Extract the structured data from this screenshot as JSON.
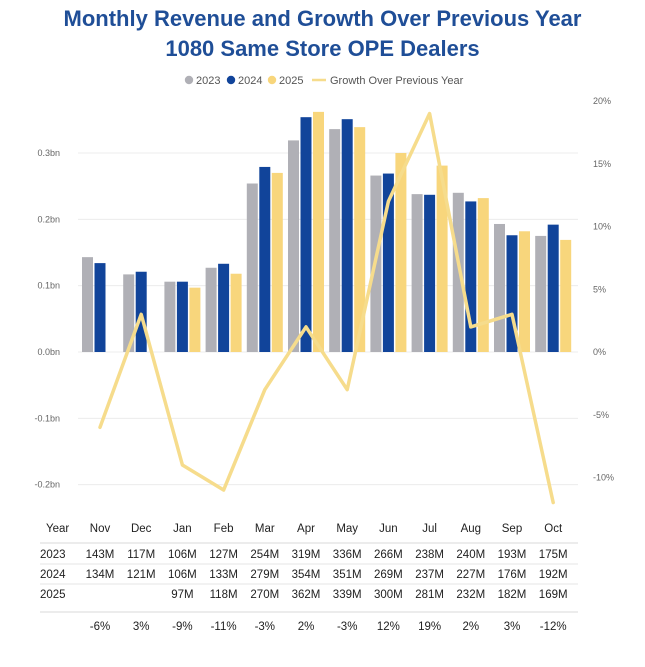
{
  "title_line1": "Monthly Revenue and Growth Over Previous Year",
  "title_line2": "1080 Same Store OPE Dealers",
  "colors": {
    "2023": "#b0b0b6",
    "2024": "#11449a",
    "2025": "#f8d67c",
    "growth": "#f6dc8c",
    "title": "#1f4e97"
  },
  "chart_data": {
    "type": "bar",
    "categories": [
      "Nov",
      "Dec",
      "Jan",
      "Feb",
      "Mar",
      "Apr",
      "May",
      "Jun",
      "Jul",
      "Aug",
      "Sep",
      "Oct"
    ],
    "series": [
      {
        "name": "2023",
        "values": [
          143,
          117,
          106,
          127,
          254,
          319,
          336,
          266,
          238,
          240,
          193,
          175
        ]
      },
      {
        "name": "2024",
        "values": [
          134,
          121,
          106,
          133,
          279,
          354,
          351,
          269,
          237,
          227,
          176,
          192
        ]
      },
      {
        "name": "2025",
        "values": [
          null,
          null,
          97,
          118,
          270,
          362,
          339,
          300,
          281,
          232,
          182,
          169
        ]
      }
    ],
    "line_series": {
      "name": "Growth Over Previous Year",
      "values": [
        -6,
        3,
        -9,
        -11,
        -3,
        2,
        -3,
        12,
        19,
        2,
        3,
        -12
      ]
    },
    "y_left": {
      "ticks": [
        "0.3bn",
        "0.2bn",
        "0.1bn",
        "0.0bn",
        "-0.1bn",
        "-0.2bn"
      ],
      "tick_values": [
        300,
        200,
        100,
        0,
        -100,
        -200
      ],
      "unit": "M"
    },
    "y_right": {
      "ticks": [
        "20%",
        "15%",
        "10%",
        "5%",
        "0%",
        "-5%",
        "-10%"
      ],
      "tick_values": [
        20,
        15,
        10,
        5,
        0,
        -5,
        -10
      ]
    },
    "legend": [
      "2023",
      "2024",
      "2025",
      "Growth Over Previous Year"
    ],
    "legend_position": "top",
    "grid": true
  },
  "table": {
    "header": "Year",
    "months": [
      "Nov",
      "Dec",
      "Jan",
      "Feb",
      "Mar",
      "Apr",
      "May",
      "Jun",
      "Jul",
      "Aug",
      "Sep",
      "Oct"
    ],
    "rows": [
      {
        "label": "2023",
        "cells": [
          "143M",
          "117M",
          "106M",
          "127M",
          "254M",
          "319M",
          "336M",
          "266M",
          "238M",
          "240M",
          "193M",
          "175M"
        ]
      },
      {
        "label": "2024",
        "cells": [
          "134M",
          "121M",
          "106M",
          "133M",
          "279M",
          "354M",
          "351M",
          "269M",
          "237M",
          "227M",
          "176M",
          "192M"
        ]
      },
      {
        "label": "2025",
        "cells": [
          "",
          "",
          "97M",
          "118M",
          "270M",
          "362M",
          "339M",
          "300M",
          "281M",
          "232M",
          "182M",
          "169M"
        ]
      },
      {
        "label": "",
        "cells": [
          "-6%",
          "3%",
          "-9%",
          "-11%",
          "-3%",
          "2%",
          "-3%",
          "12%",
          "19%",
          "2%",
          "3%",
          "-12%"
        ]
      }
    ]
  }
}
